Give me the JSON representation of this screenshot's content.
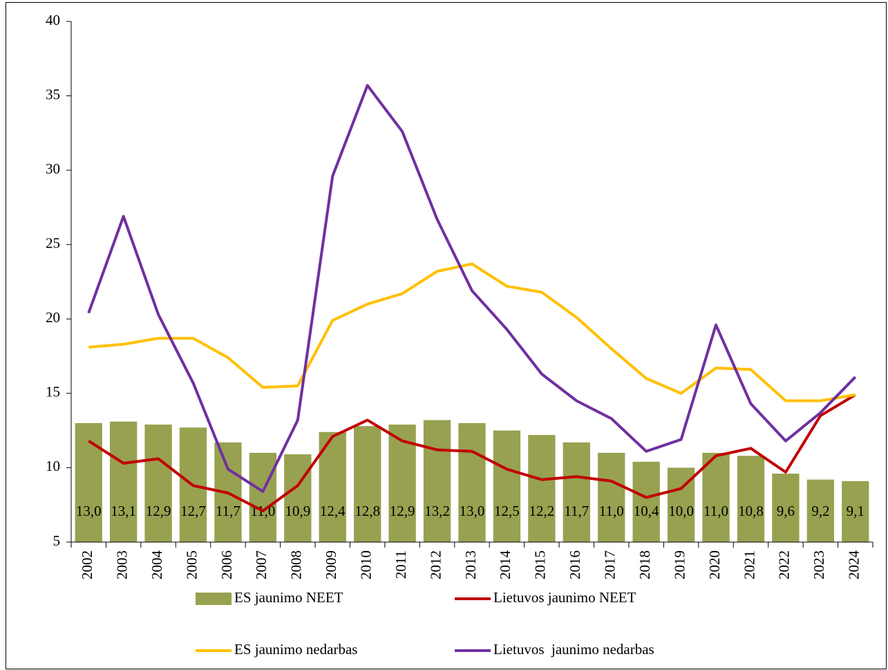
{
  "chart_data": {
    "type": "combo",
    "categories": [
      "2002",
      "2003",
      "2004",
      "2005",
      "2006",
      "2007",
      "2008",
      "2009",
      "2010",
      "2011",
      "2012",
      "2013",
      "2014",
      "2015",
      "2016",
      "2017",
      "2018",
      "2019",
      "2020",
      "2021",
      "2022",
      "2023",
      "2024"
    ],
    "series": [
      {
        "name": "ES jaunimo NEET",
        "type": "bar",
        "color": "#98a150",
        "values": [
          13.0,
          13.1,
          12.9,
          12.7,
          11.7,
          11.0,
          10.9,
          12.4,
          12.8,
          12.9,
          13.2,
          13.0,
          12.5,
          12.2,
          11.7,
          11.0,
          10.4,
          10.0,
          11.0,
          10.8,
          9.6,
          9.2,
          9.1
        ],
        "value_labels": [
          "13,0",
          "13,1",
          "12,9",
          "12,7",
          "11,7",
          "11,0",
          "10,9",
          "12,4",
          "12,8",
          "12,9",
          "13,2",
          "13,0",
          "12,5",
          "12,2",
          "11,7",
          "11,0",
          "10,4",
          "10,0",
          "11,0",
          "10,8",
          "9,6",
          "9,2",
          "9,1"
        ]
      },
      {
        "name": "Lietuvos jaunimo NEET",
        "type": "line",
        "color": "#c00000",
        "values": [
          11.8,
          10.3,
          10.6,
          8.8,
          8.3,
          7.1,
          8.8,
          12.1,
          13.2,
          11.8,
          11.2,
          11.1,
          9.9,
          9.2,
          9.4,
          9.1,
          8.0,
          8.6,
          10.8,
          11.3,
          9.7,
          13.5,
          14.9
        ]
      },
      {
        "name": "ES jaunimo nedarbas",
        "type": "line",
        "color": "#ffc000",
        "values": [
          18.1,
          18.3,
          18.7,
          18.7,
          17.4,
          15.4,
          15.5,
          19.9,
          21.0,
          21.7,
          23.2,
          23.7,
          22.2,
          21.8,
          20.1,
          18.0,
          16.0,
          15.0,
          16.7,
          16.6,
          14.5,
          14.5,
          14.9
        ]
      },
      {
        "name": "Lietuvos  jaunimo nedarbas",
        "type": "line",
        "color": "#7030a0",
        "values": [
          20.4,
          26.9,
          20.3,
          15.7,
          9.9,
          8.4,
          13.2,
          29.6,
          35.7,
          32.6,
          26.7,
          21.9,
          19.3,
          16.3,
          14.5,
          13.3,
          11.1,
          11.9,
          19.6,
          14.3,
          11.8,
          13.7,
          16.1
        ]
      }
    ],
    "ylim": [
      5,
      40
    ],
    "yticks": [
      5,
      10,
      15,
      20,
      25,
      30,
      35,
      40
    ]
  }
}
